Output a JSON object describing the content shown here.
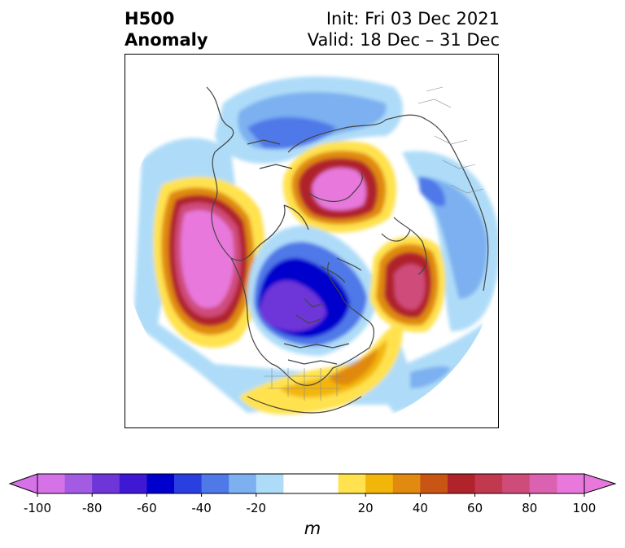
{
  "title": {
    "left_line1": "H500",
    "left_line2": "Anomaly",
    "right_line1": "Init: Fri 03 Dec 2021",
    "right_line2": "Valid: 18 Dec – 31 Dec"
  },
  "colorbar": {
    "unit": "m",
    "ticks": [
      "-100",
      "-80",
      "-60",
      "-40",
      "-20",
      "20",
      "40",
      "60",
      "80",
      "100"
    ],
    "tick_values": [
      -100,
      -80,
      -60,
      -40,
      -20,
      20,
      40,
      60,
      80,
      100
    ],
    "min": -100,
    "max": 100,
    "step": 10,
    "colors": [
      "#d672e8",
      "#a35be3",
      "#6e36d8",
      "#3f18d4",
      "#0000cd",
      "#2a3fe0",
      "#4f78e8",
      "#7cb0f0",
      "#aedcf8",
      "#ffffff",
      "#ffffff",
      "#ffe24d",
      "#f2b50a",
      "#e08a10",
      "#c95515",
      "#b0232a",
      "#c2384e",
      "#cf4c7a",
      "#db62b0",
      "#e878db"
    ],
    "extend": "both"
  },
  "colors": {
    "neg_strong": "#6e36d8",
    "neg_mid": "#2a3fe0",
    "neg_light": "#aedcf8",
    "pos_light": "#ffe24d",
    "pos_mid": "#e08a10",
    "pos_strong": "#b0232a",
    "pos_max": "#e878db",
    "coastline": "#444444"
  }
}
